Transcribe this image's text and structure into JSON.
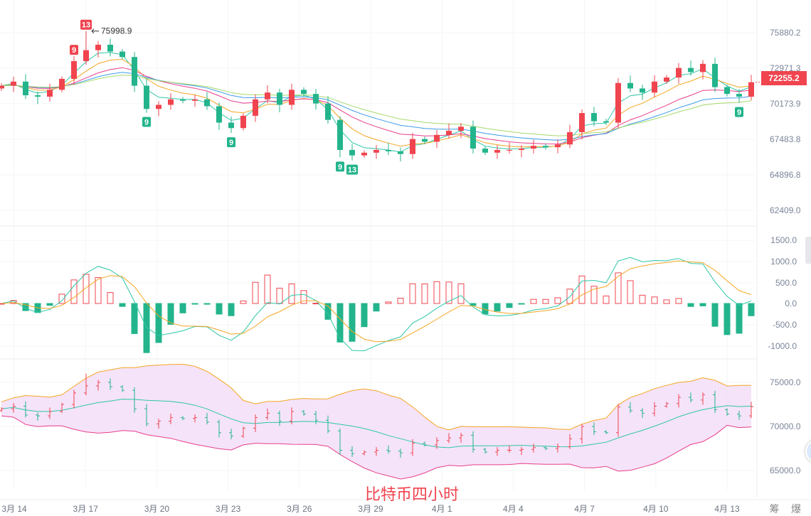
{
  "title": "比特币四小时",
  "corner_labels": "筹 爆",
  "last_price_tag": "72255.2",
  "colors": {
    "up": "#f0444f",
    "down": "#23b48c",
    "ma1": "#2ec7a8",
    "ma2": "#f5a623",
    "ma3": "#e83e8c",
    "ma4": "#3d9be9",
    "ma5": "#a6d96a",
    "boll_fill": "#f3dcf8"
  },
  "chart_data": {
    "type": "candlestick",
    "x_tick_labels": [
      "3月 14",
      "3月 17",
      "3月 20",
      "3月 23",
      "3月 26",
      "3月 29",
      "4月 1",
      "4月 4",
      "4月 7",
      "4月 10",
      "4月 13"
    ],
    "closes": [
      72000,
      72300,
      71300,
      71200,
      71700,
      72500,
      73800,
      74600,
      75000,
      74500,
      74100,
      72000,
      70300,
      70600,
      71000,
      70900,
      71000,
      70500,
      69300,
      68900,
      69800,
      71000,
      71500,
      70600,
      71700,
      71400,
      70700,
      69500,
      67300,
      66900,
      67100,
      67300,
      67200,
      67000,
      68100,
      67900,
      68400,
      68700,
      69000,
      67400,
      67100,
      67300,
      67300,
      67400,
      67600,
      67500,
      67700,
      68600,
      70000,
      69400,
      69300,
      72200,
      71800,
      71500,
      72300,
      72600,
      73300,
      73000,
      73600,
      71900,
      71400,
      71200,
      72255.2
    ],
    "price_axis": {
      "ticks": [
        "75880.2",
        "72971.3",
        "70173.9",
        "67483.8",
        "64896.8",
        "62409.0"
      ],
      "range": [
        62409.0,
        75880.2
      ]
    },
    "macd_axis": {
      "ticks": [
        "1500.0",
        "1000.0",
        "500.0",
        "0.0",
        "-500.0",
        "-1000.0"
      ],
      "range": [
        -1000,
        1500
      ]
    },
    "boll_axis": {
      "ticks": [
        "75000.0",
        "70000.0",
        "65000.0"
      ],
      "range": [
        65000,
        75000
      ]
    },
    "high_annotation": "75998.9",
    "markers": [
      {
        "index": 6,
        "label": "9",
        "type": "sell"
      },
      {
        "index": 7,
        "label": "13",
        "type": "sell"
      },
      {
        "index": 12,
        "label": "9",
        "type": "buy"
      },
      {
        "index": 19,
        "label": "9",
        "type": "buy"
      },
      {
        "index": 28,
        "label": "9",
        "type": "buy"
      },
      {
        "index": 29,
        "label": "13",
        "type": "buy"
      },
      {
        "index": 61,
        "label": "9",
        "type": "buy"
      }
    ]
  }
}
